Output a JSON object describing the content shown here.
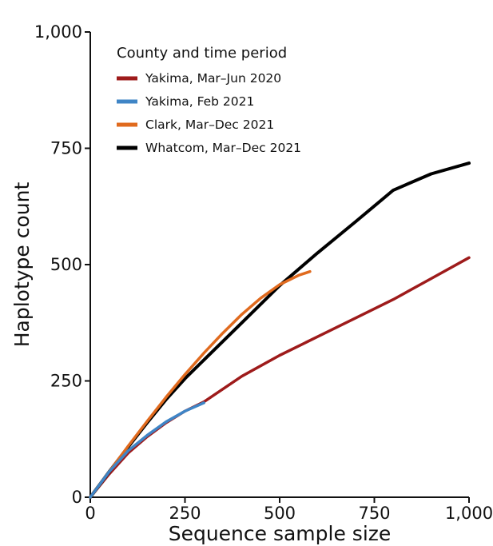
{
  "chart_data": {
    "type": "line",
    "title": "",
    "xlabel": "Sequence sample size",
    "ylabel": "Haplotype count",
    "xlim": [
      0,
      1000
    ],
    "ylim": [
      0,
      1000
    ],
    "x_ticks": [
      0,
      250,
      500,
      750,
      1000
    ],
    "x_tick_labels": [
      "0",
      "250",
      "500",
      "750",
      "1,000"
    ],
    "y_ticks": [
      0,
      250,
      500,
      750,
      1000
    ],
    "y_tick_labels": [
      "0",
      "250",
      "500",
      "750",
      "1,000"
    ],
    "grid": false,
    "legend": {
      "title": "County and time period",
      "position": "top-left"
    },
    "series": [
      {
        "name": "Yakima, Mar–Jun 2020",
        "color": "#9e1b1b",
        "x": [
          0,
          50,
          100,
          150,
          200,
          250,
          300,
          400,
          500,
          600,
          700,
          800,
          900,
          1000
        ],
        "y": [
          0,
          50,
          95,
          130,
          160,
          185,
          205,
          260,
          305,
          345,
          385,
          425,
          470,
          515
        ]
      },
      {
        "name": "Yakima, Feb 2021",
        "color": "#3f85c6",
        "x": [
          0,
          50,
          100,
          150,
          200,
          250,
          300
        ],
        "y": [
          0,
          55,
          100,
          133,
          162,
          185,
          203
        ]
      },
      {
        "name": "Clark, Mar–Dec 2021",
        "color": "#e06a1e",
        "x": [
          0,
          50,
          100,
          150,
          200,
          250,
          300,
          350,
          400,
          450,
          500,
          550,
          580
        ],
        "y": [
          0,
          55,
          110,
          163,
          215,
          264,
          310,
          353,
          393,
          428,
          457,
          477,
          485
        ]
      },
      {
        "name": "Whatcom, Mar–Dec 2021",
        "color": "#000000",
        "x": [
          0,
          50,
          100,
          150,
          200,
          250,
          300,
          400,
          500,
          600,
          700,
          800,
          900,
          1000
        ],
        "y": [
          0,
          55,
          108,
          160,
          210,
          255,
          295,
          375,
          455,
          525,
          592,
          660,
          695,
          718
        ]
      }
    ]
  }
}
